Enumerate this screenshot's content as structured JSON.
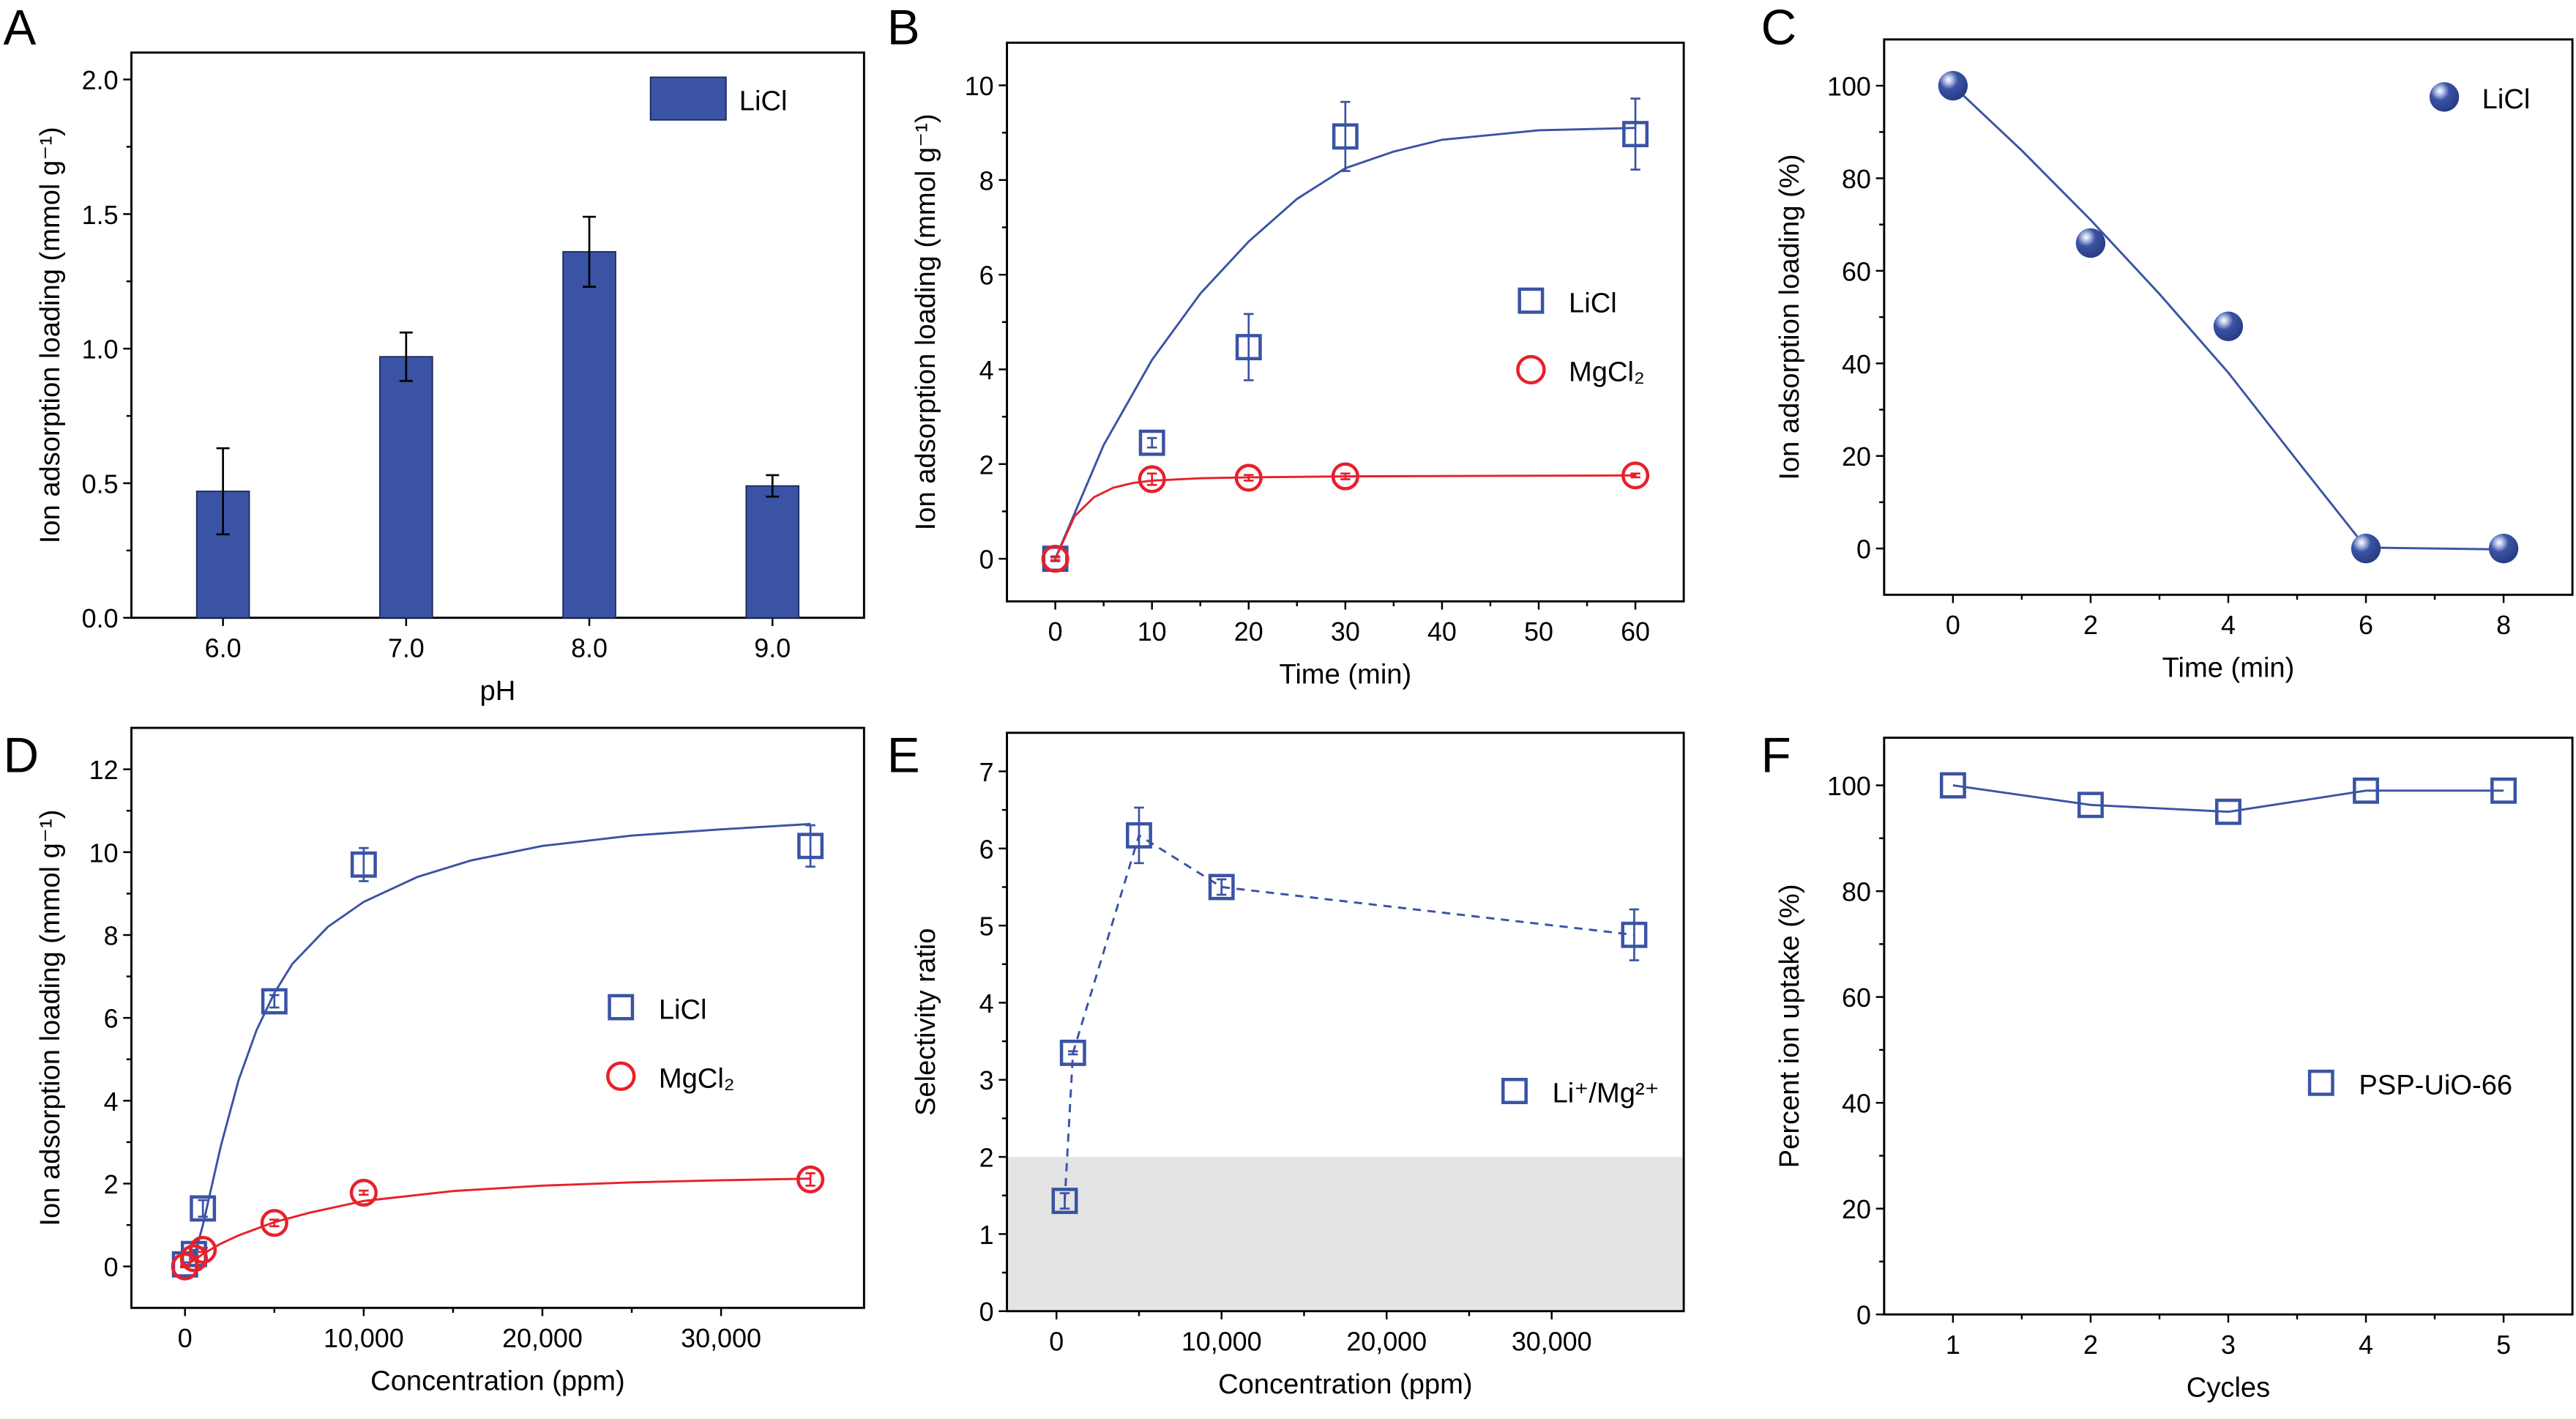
{
  "figure": {
    "panels": [
      "A",
      "B",
      "C",
      "D",
      "E",
      "F"
    ]
  },
  "colors": {
    "blue": "#3a53a4",
    "red": "#e8202a",
    "shade": "#e4e4e4",
    "axis": "#000000"
  },
  "chart_data": [
    {
      "panel": "A",
      "type": "bar",
      "title": "",
      "xlabel": "pH",
      "ylabel": "Ion adsorption loading (mmol g⁻¹)",
      "categories": [
        "6.0",
        "7.0",
        "8.0",
        "9.0"
      ],
      "series": [
        {
          "name": "LiCl",
          "values": [
            0.47,
            0.97,
            1.36,
            0.49
          ],
          "errors": [
            0.16,
            0.09,
            0.13,
            0.04
          ]
        }
      ],
      "ylim": [
        0,
        2.1
      ],
      "yticks": [
        "0.0",
        "0.5",
        "1.0",
        "1.5",
        "2.0"
      ],
      "ytick_values": [
        0,
        0.5,
        1.0,
        1.5,
        2.0
      ],
      "legend": "top-right",
      "grid": false
    },
    {
      "panel": "B",
      "type": "scatter",
      "xlabel": "Time (min)",
      "ylabel": "Ion adsorption loading (mmol g⁻¹)",
      "xlim": [
        -5,
        65
      ],
      "ylim": [
        -0.9,
        10.9
      ],
      "xticks": [
        "0",
        "10",
        "20",
        "30",
        "40",
        "50",
        "60"
      ],
      "xtick_values": [
        0,
        10,
        20,
        30,
        40,
        50,
        60
      ],
      "yticks": [
        "0",
        "2",
        "4",
        "6",
        "8",
        "10"
      ],
      "ytick_values": [
        0,
        2,
        4,
        6,
        8,
        10
      ],
      "series": [
        {
          "name": "LiCl",
          "marker": "square",
          "x": [
            0,
            10,
            20,
            30,
            60
          ],
          "y": [
            0,
            2.45,
            4.47,
            8.92,
            8.97
          ],
          "errors": [
            0.05,
            0.1,
            0.7,
            0.73,
            0.75
          ],
          "fit": {
            "x": [
              0,
              5,
              10,
              15,
              20,
              25,
              30,
              35,
              40,
              50,
              60
            ],
            "y": [
              0,
              2.4,
              4.2,
              5.6,
              6.7,
              7.6,
              8.25,
              8.6,
              8.85,
              9.05,
              9.1
            ]
          }
        },
        {
          "name": "MgCl2",
          "marker": "circle",
          "x": [
            0,
            10,
            20,
            30,
            60
          ],
          "y": [
            0,
            1.68,
            1.71,
            1.74,
            1.76
          ],
          "errors": [
            0.03,
            0.12,
            0.06,
            0.06,
            0.04
          ],
          "fit": {
            "x": [
              0,
              2,
              4,
              6,
              8,
              10,
              15,
              20,
              30,
              60
            ],
            "y": [
              0,
              0.9,
              1.3,
              1.5,
              1.6,
              1.65,
              1.7,
              1.72,
              1.74,
              1.76
            ]
          }
        }
      ],
      "legend_entries": [
        "LiCl",
        "MgCl₂"
      ],
      "legend": "center-right",
      "grid": false
    },
    {
      "panel": "C",
      "type": "line",
      "xlabel": "Time (min)",
      "ylabel": "Ion adsorption loading (%)",
      "xlim": [
        -1,
        9
      ],
      "ylim": [
        -10,
        110
      ],
      "xticks": [
        "0",
        "2",
        "4",
        "6",
        "8"
      ],
      "xtick_values": [
        0,
        2,
        4,
        6,
        8
      ],
      "yticks": [
        "0",
        "20",
        "40",
        "60",
        "80",
        "100"
      ],
      "ytick_values": [
        0,
        20,
        40,
        60,
        80,
        100
      ],
      "series": [
        {
          "name": "LiCl",
          "marker": "sphere",
          "x": [
            0,
            2,
            4,
            6,
            8
          ],
          "y": [
            100,
            66,
            48,
            0,
            0
          ],
          "fit": {
            "x": [
              0,
              1,
              2,
              3,
              4,
              5,
              6,
              8
            ],
            "y": [
              100,
              86,
              71,
              55,
              38,
              19,
              0.2,
              -0.2
            ]
          }
        }
      ],
      "legend": "top-right",
      "grid": false
    },
    {
      "panel": "D",
      "type": "scatter",
      "xlabel": "Concentration (ppm)",
      "ylabel": "Ion adsorption loading (mmol g⁻¹)",
      "xlim": [
        -3000,
        38000
      ],
      "ylim": [
        -1,
        13
      ],
      "xticks": [
        "0",
        "10,000",
        "20,000",
        "30,000"
      ],
      "xtick_values": [
        0,
        10000,
        20000,
        30000
      ],
      "yticks": [
        "0",
        "2",
        "4",
        "6",
        "8",
        "10",
        "12"
      ],
      "ytick_values": [
        0,
        2,
        4,
        6,
        8,
        10,
        12
      ],
      "series": [
        {
          "name": "LiCl",
          "marker": "square",
          "x": [
            0,
            500,
            1000,
            5000,
            10000,
            35000
          ],
          "y": [
            0.05,
            0.3,
            1.4,
            6.4,
            9.7,
            10.15
          ],
          "errors": [
            0.05,
            0.1,
            0.2,
            0.15,
            0.4,
            0.5
          ],
          "fit": {
            "x": [
              500,
              1000,
              2000,
              3000,
              4000,
              5000,
              6000,
              8000,
              10000,
              13000,
              16000,
              20000,
              25000,
              30000,
              35000
            ],
            "y": [
              0.2,
              1.0,
              2.9,
              4.5,
              5.7,
              6.6,
              7.3,
              8.2,
              8.8,
              9.4,
              9.8,
              10.15,
              10.4,
              10.55,
              10.68
            ]
          }
        },
        {
          "name": "MgCl2",
          "marker": "circle",
          "x": [
            0,
            500,
            1000,
            5000,
            10000,
            35000
          ],
          "y": [
            0,
            0.2,
            0.4,
            1.05,
            1.78,
            2.1
          ],
          "errors": [
            0.02,
            0.05,
            0.05,
            0.08,
            0.05,
            0.15
          ],
          "fit": {
            "x": [
              0,
              1000,
              2000,
              3000,
              5000,
              7000,
              10000,
              15000,
              20000,
              25000,
              30000,
              35000
            ],
            "y": [
              0,
              0.3,
              0.55,
              0.75,
              1.07,
              1.3,
              1.58,
              1.82,
              1.95,
              2.03,
              2.08,
              2.12
            ]
          }
        }
      ],
      "legend_entries": [
        "LiCl",
        "MgCl₂"
      ],
      "legend": "center-right",
      "grid": false
    },
    {
      "panel": "E",
      "type": "line",
      "xlabel": "Concentration (ppm)",
      "ylabel": "Selectivity ratio",
      "xlim": [
        -3000,
        38000
      ],
      "ylim": [
        0,
        7.5
      ],
      "xticks": [
        "0",
        "10,000",
        "20,000",
        "30,000"
      ],
      "xtick_values": [
        0,
        10000,
        20000,
        30000
      ],
      "yticks": [
        "0",
        "1",
        "2",
        "3",
        "4",
        "5",
        "6",
        "7"
      ],
      "ytick_values": [
        0,
        1,
        2,
        3,
        4,
        5,
        6,
        7
      ],
      "shaded_region": {
        "y_from": 0,
        "y_to": 2
      },
      "series": [
        {
          "name": "Li+/Mg2+",
          "marker": "square",
          "linestyle": "dashed",
          "x": [
            500,
            1000,
            5000,
            10000,
            35000
          ],
          "y": [
            1.43,
            3.35,
            6.17,
            5.5,
            4.88
          ],
          "errors": [
            0.1,
            0.02,
            0.36,
            0.1,
            0.33
          ]
        }
      ],
      "legend_entries": [
        "Li⁺/Mg²⁺"
      ],
      "legend": "center-right",
      "grid": false
    },
    {
      "panel": "F",
      "type": "line",
      "xlabel": "Cycles",
      "ylabel": "Percent ion uptake (%)",
      "xlim": [
        0.5,
        5.5
      ],
      "ylim": [
        0,
        109
      ],
      "xticks": [
        "1",
        "2",
        "3",
        "4",
        "5"
      ],
      "xtick_values": [
        1,
        2,
        3,
        4,
        5
      ],
      "yticks": [
        "0",
        "20",
        "40",
        "60",
        "80",
        "100"
      ],
      "ytick_values": [
        0,
        20,
        40,
        60,
        80,
        100
      ],
      "series": [
        {
          "name": "PSP-UiO-66",
          "marker": "square",
          "x": [
            1,
            2,
            3,
            4,
            5
          ],
          "y": [
            100,
            96.3,
            95,
            99,
            99
          ]
        }
      ],
      "legend": "center-right",
      "grid": false
    }
  ]
}
